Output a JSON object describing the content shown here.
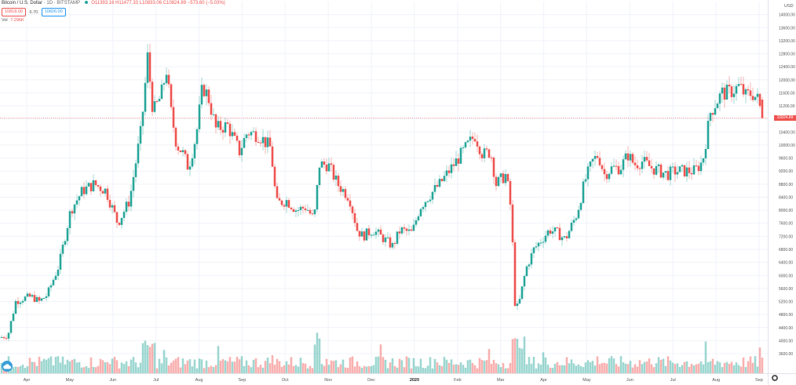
{
  "header": {
    "symbol_title": "Bitcoin / U.S. Dollar",
    "interval": "1D",
    "exchange": "BITSTAMP",
    "ohlc": "O11393.16 H11477.33 L10833.06 C10824.89 −573.60 (−5.03%)"
  },
  "trade": {
    "sell_price": "10818.00",
    "spread": "6.70",
    "buy_price": "10826.00"
  },
  "volume": {
    "label": "Vol",
    "value": "7.296K"
  },
  "price_axis": {
    "currency": "USD",
    "min": 3000,
    "max": 14400,
    "ticks": [
      "14000.00",
      "13600.00",
      "13200.00",
      "12800.00",
      "12400.00",
      "12000.00",
      "11600.00",
      "11200.00",
      "10800.00",
      "10400.00",
      "10000.00",
      "9600.00",
      "9200.00",
      "8800.00",
      "8400.00",
      "8000.00",
      "7600.00",
      "7200.00",
      "6800.00",
      "6400.00",
      "6000.00",
      "5600.00",
      "5200.00",
      "4800.00",
      "4400.00",
      "4000.00",
      "3600.00"
    ]
  },
  "current_price_label": "10824.89",
  "time_axis": {
    "labels": [
      "Apr",
      "May",
      "Jun",
      "Jul",
      "Aug",
      "Sep",
      "Oct",
      "Nov",
      "Dec",
      "2020",
      "Feb",
      "Mar",
      "Apr",
      "May",
      "Jun",
      "Jul",
      "Aug",
      "Sep"
    ],
    "emphasized": "2020"
  },
  "colors": {
    "up": "#26a69a",
    "down": "#ef5350",
    "grid": "#f0f3fa"
  },
  "icons": {
    "logo": "tradingview-cloud-icon",
    "settings": "gear-icon"
  },
  "chart_data": {
    "type": "candlestick",
    "series": [
      {
        "name": "BTCUSD",
        "x": [
          "2019-04",
          "2019-05",
          "2019-06",
          "2019-07",
          "2019-08",
          "2019-09",
          "2019-10",
          "2019-11",
          "2019-12",
          "2020-01",
          "2020-02",
          "2020-03",
          "2020-04",
          "2020-05",
          "2020-06",
          "2020-07",
          "2020-08",
          "2020-09"
        ],
        "values": [
          4100,
          5100,
          8300,
          11800,
          10500,
          10200,
          8300,
          8700,
          7500,
          7200,
          9900,
          8500,
          6800,
          8800,
          9600,
          9200,
          11500,
          11600
        ]
      }
    ],
    "ylim": [
      3000,
      14400
    ],
    "last_close": 10824.89
  }
}
